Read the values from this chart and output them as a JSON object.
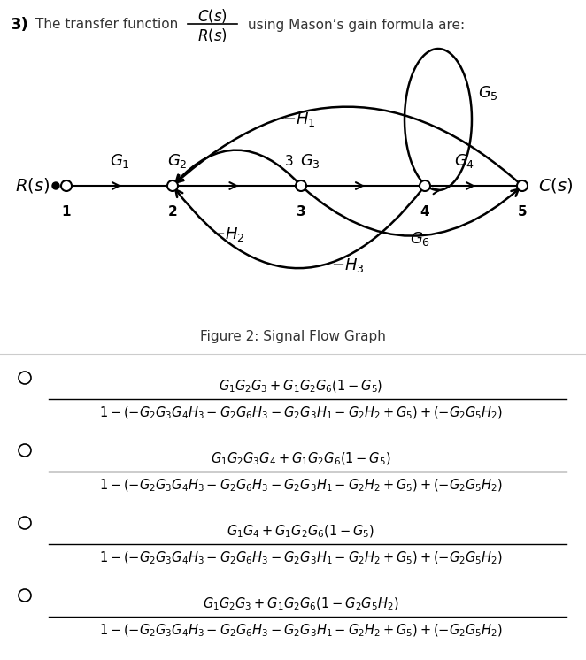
{
  "bg_color": "#ffffff",
  "numerators": [
    "G_1G_2G_3 + G_1G_2G_6(1 - G_5)",
    "G_1G_2G_3G_4 + G_1G_2G_6(1 - G_5)",
    "G_1G_4 + G_1G_2G_6(1 - G_5)",
    "G_1G_2G_3 + G_1G_2G_6(1 - G_2G_5H_2)"
  ],
  "denominator": "1-(-G_2G_3G_4H_3 - G_2G_6H_3 - G_2G_3H_1 - G_2H_2 + G_5)+(-G_2G_5H_2)"
}
